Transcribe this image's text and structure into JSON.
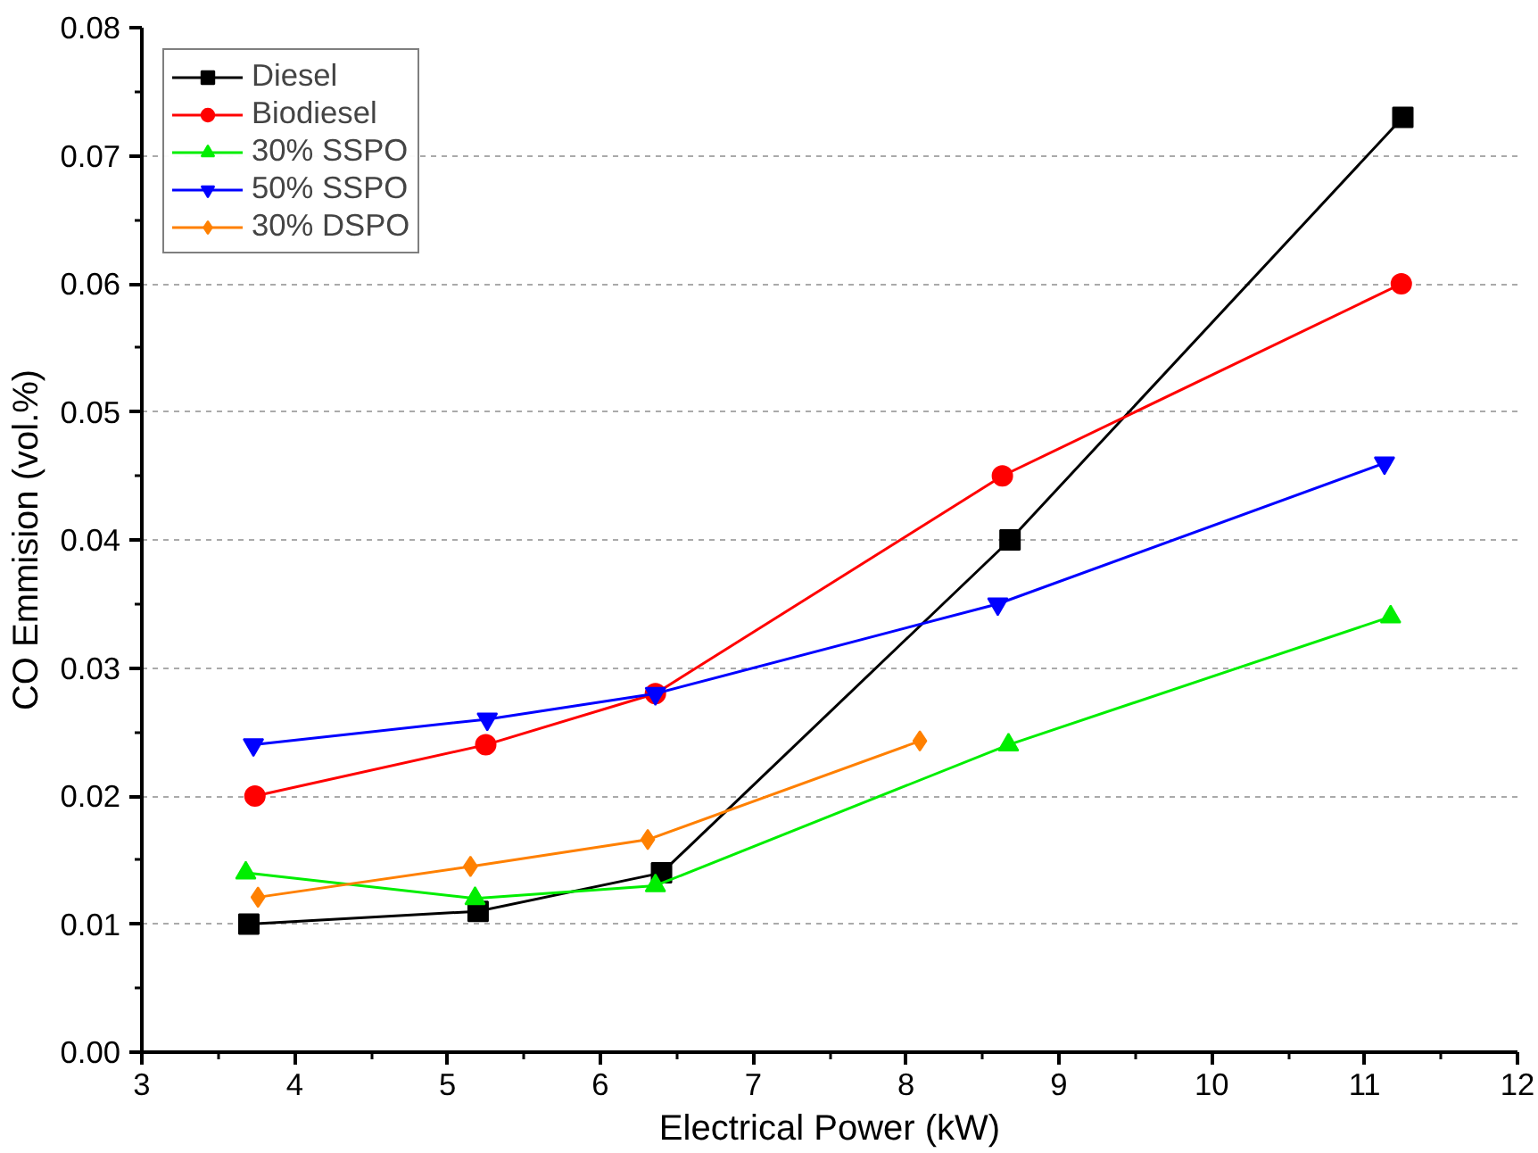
{
  "chart_data": {
    "type": "line",
    "xlabel": "Electrical Power (kW)",
    "ylabel": "CO Emmision (vol.%)",
    "xlim": [
      3,
      12
    ],
    "xticks": [
      3,
      4,
      5,
      6,
      7,
      8,
      9,
      10,
      11,
      12
    ],
    "ylim": [
      0,
      0.08
    ],
    "yticks": [
      {
        "value": 0,
        "label": "0.00"
      },
      0.01,
      0.02,
      0.03,
      0.04,
      0.05,
      0.06,
      0.07,
      0.08
    ],
    "grid": "y",
    "legend": "top left",
    "series": [
      {
        "name": "Diesel",
        "color": "#000000",
        "marker": "square",
        "x": [
          3.7,
          5.2,
          6.4,
          8.68,
          11.25
        ],
        "values": [
          0.01,
          0.011,
          0.014,
          0.04,
          0.073
        ]
      },
      {
        "name": "Biodiesel",
        "color": "#ff0000",
        "marker": "circle",
        "x": [
          3.74,
          5.25,
          6.36,
          8.63,
          11.24
        ],
        "values": [
          0.02,
          0.024,
          0.028,
          0.045,
          0.06
        ]
      },
      {
        "name": "30% SSPO",
        "color": "#00ee00",
        "marker": "triangle",
        "x": [
          3.68,
          5.18,
          6.36,
          8.67,
          11.17
        ],
        "values": [
          0.014,
          0.012,
          0.013,
          0.024,
          0.034
        ]
      },
      {
        "name": "50% SSPO",
        "color": "#0000ff",
        "marker": "triangle",
        "x": [
          3.73,
          5.26,
          6.36,
          8.6,
          11.13
        ],
        "values": [
          0.024,
          0.026,
          0.028,
          0.035,
          0.046
        ]
      },
      {
        "name": "30% DSPO",
        "color": "#ff8000",
        "marker": "diamond",
        "x": [
          3.76,
          5.15,
          6.31,
          8.09
        ],
        "values": [
          0.0121,
          0.0145,
          0.0166,
          0.0243
        ]
      }
    ]
  }
}
